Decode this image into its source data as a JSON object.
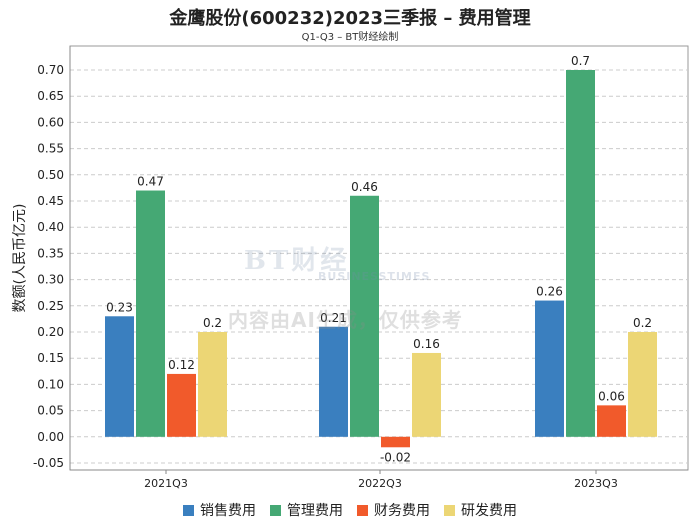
{
  "chart_data": {
    "type": "bar",
    "title": "金鹰股份(600232)2023三季报 – 费用管理",
    "subtitle": "Q1-Q3 – BT财经绘制",
    "ylabel": "数额(人民币亿元)",
    "xlabel": "",
    "ylim": [
      -0.05,
      0.75
    ],
    "yticks": [
      "-0.05",
      "0.00",
      "0.05",
      "0.10",
      "0.15",
      "0.20",
      "0.25",
      "0.30",
      "0.35",
      "0.40",
      "0.45",
      "0.50",
      "0.55",
      "0.60",
      "0.65",
      "0.70"
    ],
    "categories": [
      "2021Q3",
      "2022Q3",
      "2023Q3"
    ],
    "series": [
      {
        "name": "销售费用",
        "color": "#3a7fbf",
        "values": [
          0.23,
          0.21,
          0.26
        ],
        "labels": [
          "0.23",
          "0.21",
          "0.26"
        ]
      },
      {
        "name": "管理费用",
        "color": "#45a874",
        "values": [
          0.47,
          0.46,
          0.7
        ],
        "labels": [
          "0.47",
          "0.46",
          "0.7"
        ]
      },
      {
        "name": "财务费用",
        "color": "#f15a2b",
        "values": [
          0.12,
          -0.02,
          0.06
        ],
        "labels": [
          "0.12",
          "-0.02",
          "0.06"
        ]
      },
      {
        "name": "研发费用",
        "color": "#ecd675",
        "values": [
          0.2,
          0.16,
          0.2
        ],
        "labels": [
          "0.2",
          "0.16",
          "0.2"
        ]
      }
    ],
    "grid": true,
    "legend": "bottom-center"
  },
  "watermark": {
    "brand": "BT财经",
    "brand_en": "BUSINESSTIMES",
    "notice": "内容由AI生成，仅供参考"
  }
}
